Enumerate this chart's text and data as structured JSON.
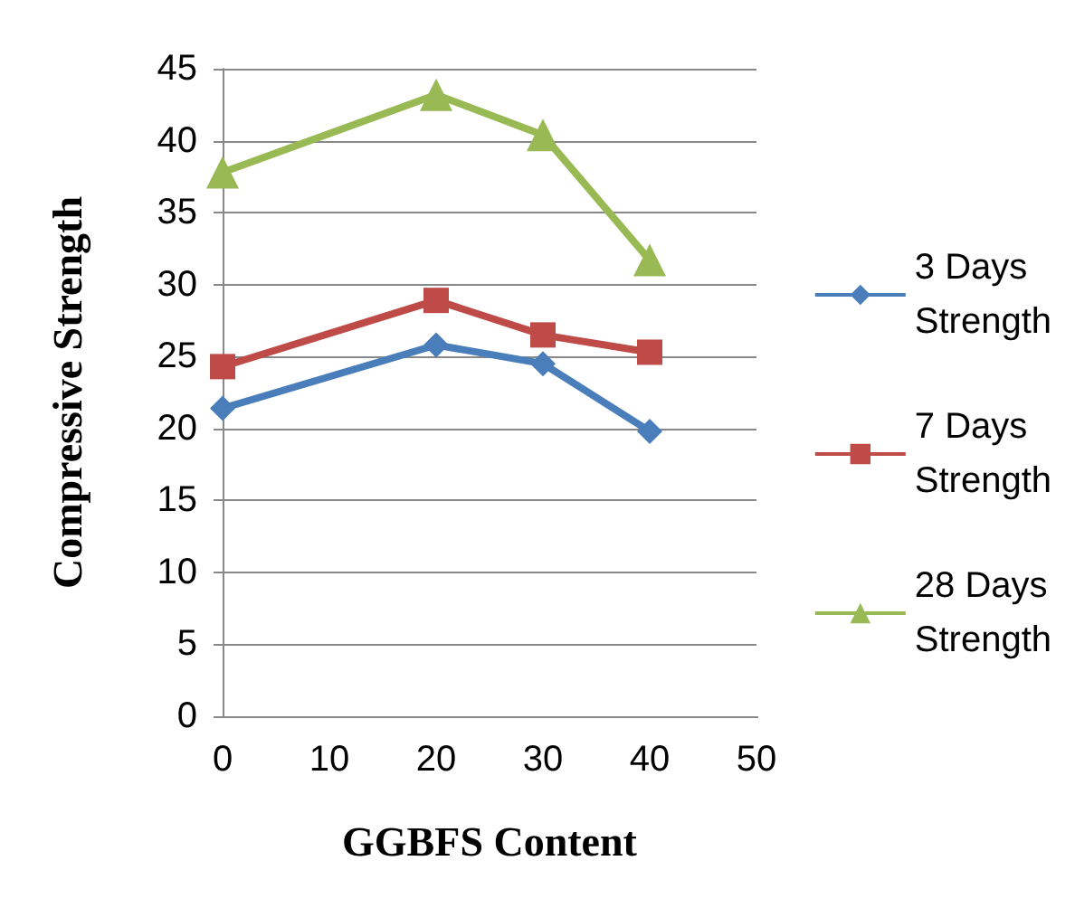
{
  "chart_data": {
    "type": "line",
    "xlabel": "GGBFS Content",
    "ylabel": "Compressive Strength",
    "x": [
      0,
      20,
      30,
      40
    ],
    "xlim": [
      0,
      50
    ],
    "xticks": [
      0,
      10,
      20,
      30,
      40,
      50
    ],
    "ylim": [
      0,
      45
    ],
    "yticks": [
      0,
      5,
      10,
      15,
      20,
      25,
      30,
      35,
      40,
      45
    ],
    "grid": "y",
    "legend": "right",
    "series": [
      {
        "name": "3 Days Strength",
        "color": "#4a7ebb",
        "marker": "diamond",
        "values": [
          21.4,
          25.8,
          24.5,
          19.8
        ]
      },
      {
        "name": "7 Days Strength",
        "color": "#be4b48",
        "marker": "square",
        "values": [
          24.3,
          28.9,
          26.5,
          25.3
        ]
      },
      {
        "name": "28 Days Strength",
        "color": "#98b954",
        "marker": "triangle",
        "values": [
          37.8,
          43.2,
          40.4,
          31.7
        ]
      }
    ]
  }
}
